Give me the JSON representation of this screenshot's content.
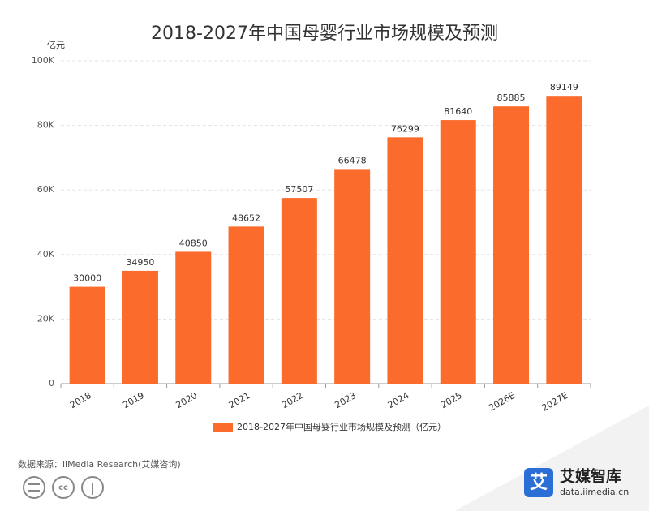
{
  "chart_data": {
    "type": "bar",
    "title": "2018-2027年中国母婴行业市场规模及预测",
    "y_unit": "亿元",
    "categories": [
      "2018",
      "2019",
      "2020",
      "2021",
      "2022",
      "2023",
      "2024",
      "2025",
      "2026E",
      "2027E"
    ],
    "series": [
      {
        "name": "2018-2027年中国母婴行业市场规模及预测（亿元）",
        "color": "#fa6b2c",
        "values": [
          30000,
          34950,
          40850,
          48652,
          57507,
          66478,
          76299,
          81640,
          85885,
          89149
        ]
      }
    ],
    "ylim": [
      0,
      100000
    ],
    "yticks": [
      0,
      {
        "value": 20000,
        "label": "20K"
      },
      {
        "value": 40000,
        "label": "40K"
      },
      {
        "value": 60000,
        "label": "60K"
      },
      {
        "value": 80000,
        "label": "80K"
      },
      {
        "value": 100000,
        "label": "100K"
      }
    ],
    "grid": true,
    "source": "数据来源：iiMedia Research(艾媒咨询)",
    "brand": "艾媒智库",
    "brand_url": "data.iimedia.cn"
  }
}
